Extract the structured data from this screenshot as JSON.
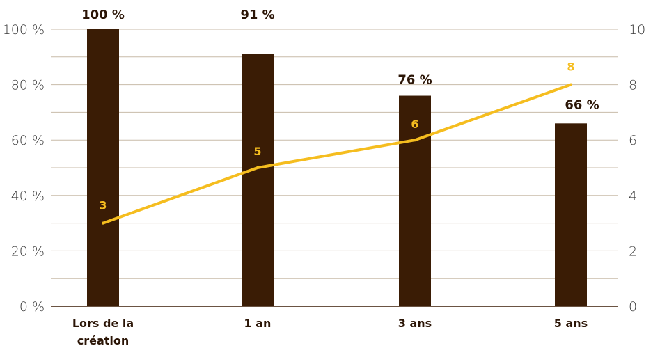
{
  "chart_data": {
    "type": "bar",
    "categories": [
      [
        "Lors de la",
        "création"
      ],
      [
        "1 an"
      ],
      [
        "3 ans"
      ],
      [
        "5 ans"
      ]
    ],
    "bar_values": [
      100,
      91,
      76,
      66
    ],
    "bar_labels": [
      "100 %",
      "91 %",
      "76 %",
      "66 %"
    ],
    "line_values": [
      3,
      5,
      6,
      8
    ],
    "line_labels": [
      "3",
      "5",
      "6",
      "8"
    ],
    "y_left": {
      "min": 0,
      "max": 100,
      "ticks": [
        "0 %",
        "20 %",
        "40 %",
        "60 %",
        "80 %",
        "100 %"
      ]
    },
    "y_right": {
      "min": 0,
      "max": 10,
      "ticks": [
        "0",
        "2",
        "4",
        "6",
        "8",
        "10"
      ]
    },
    "grid": true,
    "colors": {
      "bar": "#3a1c05",
      "line": "#f5bd1f",
      "grid": "#c8bba9",
      "axis": "#3a1c05"
    }
  }
}
